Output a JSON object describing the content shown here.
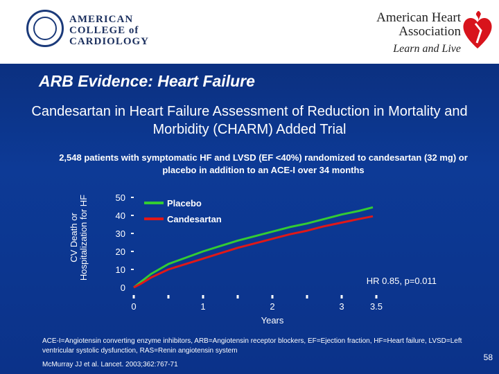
{
  "logos": {
    "acc": {
      "line1": "AMERICAN",
      "line2": "COLLEGE of",
      "line3": "CARDIOLOGY"
    },
    "aha": {
      "line1": "American Heart",
      "line2": "Association",
      "tagline": "Learn and Live"
    }
  },
  "slide": {
    "title": "ARB Evidence: Heart Failure",
    "subtitle": "Candesartan in Heart Failure Assessment of Reduction in Mortality and Morbidity (CHARM) Added Trial",
    "description": "2,548 patients with symptomatic HF and LVSD (EF <40%) randomized to candesartan (32 mg) or placebo in addition to an ACE-I over 34 months",
    "footnote": "ACE-I=Angiotensin converting enzyme inhibitors, ARB=Angiotensin receptor blockers, EF=Ejection fraction, HF=Heart failure, LVSD=Left ventricular systolic dysfunction, RAS=Renin angiotensin system",
    "citation": "McMurray JJ et al. Lancet. 2003;362:767-71",
    "page_number": "58"
  },
  "chart_data": {
    "type": "line",
    "title": "",
    "xlabel": "Years",
    "ylabel": "CV Death or Hospitalization for HF",
    "xlim": [
      0,
      3.5
    ],
    "ylim": [
      0,
      50
    ],
    "x_ticks": [
      {
        "value": 0,
        "label": "0"
      },
      {
        "value": 1,
        "label": "1"
      },
      {
        "value": 2,
        "label": "2"
      },
      {
        "value": 3,
        "label": "3"
      },
      {
        "value": 3.5,
        "label": "3.5"
      }
    ],
    "x_minor_ticks": [
      0.5,
      1.5,
      2.5
    ],
    "y_ticks": [
      0,
      10,
      20,
      30,
      40,
      50
    ],
    "grid": false,
    "legend_position": "top-left",
    "annotation": "HR 0.85, p=0.011",
    "series": [
      {
        "name": "Placebo",
        "color": "#33cc33",
        "x": [
          0,
          0.1,
          0.25,
          0.5,
          0.75,
          1.0,
          1.25,
          1.5,
          1.75,
          2.0,
          2.25,
          2.5,
          2.75,
          3.0,
          3.25,
          3.45
        ],
        "values": [
          0,
          3,
          7.5,
          13,
          16.5,
          20,
          23,
          26,
          28.5,
          31,
          33.5,
          35.5,
          38,
          40.5,
          42.5,
          44.5
        ]
      },
      {
        "name": "Candesartan",
        "color": "#e01818",
        "x": [
          0,
          0.1,
          0.25,
          0.5,
          0.75,
          1.0,
          1.25,
          1.5,
          1.75,
          2.0,
          2.25,
          2.5,
          2.75,
          3.0,
          3.25,
          3.45
        ],
        "values": [
          0,
          2,
          5.5,
          10,
          13,
          16,
          19,
          22,
          24.5,
          27,
          29.5,
          31.5,
          34,
          36,
          38,
          39.5
        ]
      }
    ]
  }
}
